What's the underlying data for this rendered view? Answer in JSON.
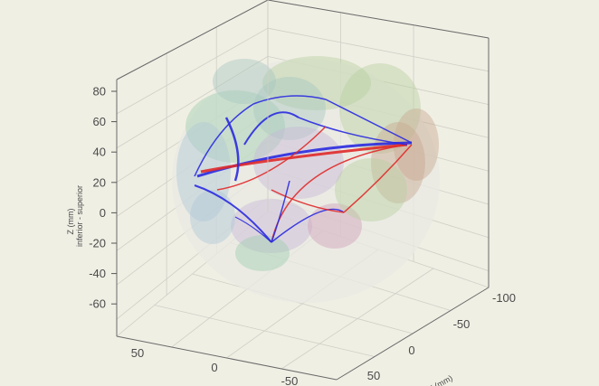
{
  "chart_data": {
    "type": "3d-network",
    "zlabel_line1": "Z (mm)",
    "zlabel_line2": "inferior - superior",
    "ylabel": "Y (mm)",
    "zlim": [
      -70,
      80
    ],
    "z_ticks": [
      {
        "v": 80,
        "label": "80"
      },
      {
        "v": 60,
        "label": "60"
      },
      {
        "v": 40,
        "label": "40"
      },
      {
        "v": 20,
        "label": "20"
      },
      {
        "v": 0,
        "label": "0"
      },
      {
        "v": -20,
        "label": "-20"
      },
      {
        "v": -40,
        "label": "-40"
      },
      {
        "v": -60,
        "label": "-60"
      }
    ],
    "x_ticks": [
      {
        "v": 50,
        "label": "50"
      },
      {
        "v": 0,
        "label": "0"
      },
      {
        "v": -50,
        "label": "-50"
      }
    ],
    "y_ticks": [
      {
        "v": -100,
        "label": "-100"
      },
      {
        "v": -50,
        "label": "-50"
      },
      {
        "v": 0,
        "label": "0"
      },
      {
        "v": 50,
        "label": "50"
      }
    ],
    "edge_colors": {
      "blue": "#2a2ae0",
      "red": "#e02a2a"
    },
    "region_colors": [
      "#9fcfb0",
      "#b8d0a0",
      "#c8b8d8",
      "#d0a0b8",
      "#a8c8c0",
      "#c8a890",
      "#b0c8d8"
    ]
  }
}
